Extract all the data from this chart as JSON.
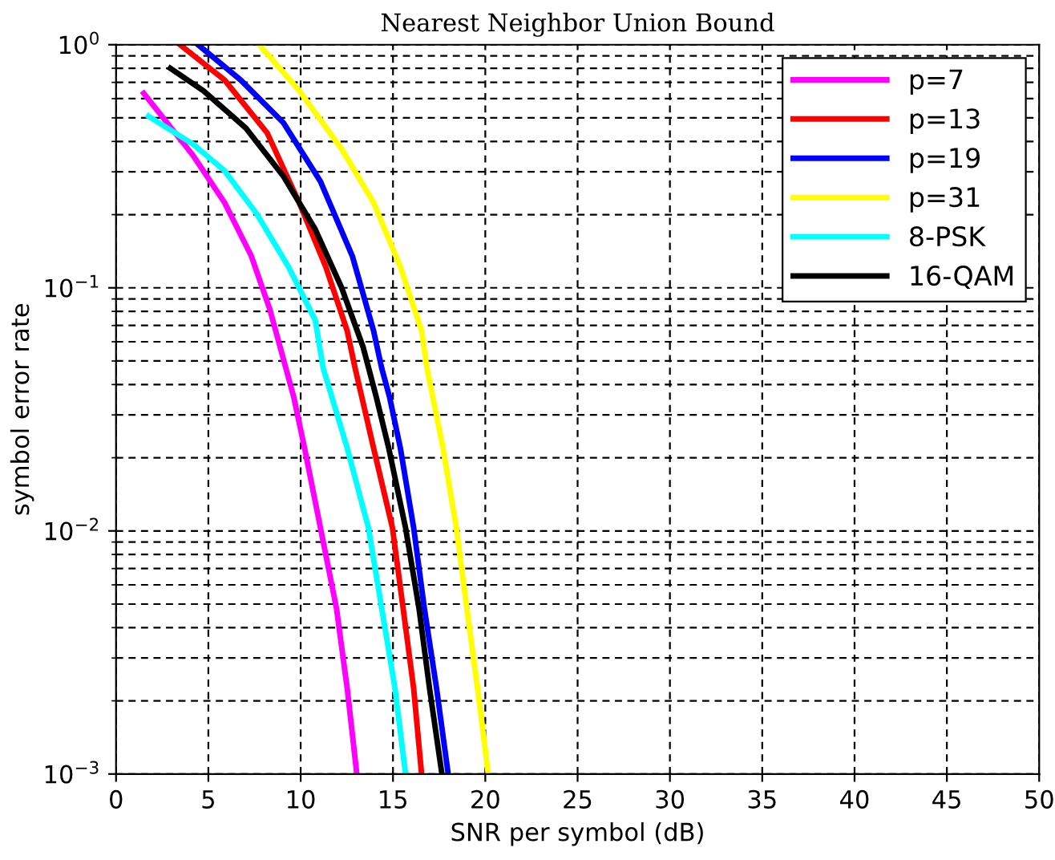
{
  "chart_data": {
    "type": "line",
    "title": "Nearest Neighbor Union Bound",
    "xlabel": "SNR per symbol (dB)",
    "ylabel": "symbol error rate",
    "log": "y",
    "grid": true,
    "legend": "top right",
    "line_style": "solid",
    "marker": "none",
    "xlim": [
      0,
      50
    ],
    "xticks": [
      0,
      5,
      10,
      15,
      20,
      25,
      30,
      35,
      40,
      45,
      50
    ],
    "ylim": [
      0.001,
      1
    ],
    "yticks": [
      {
        "value": 0.001,
        "label": "10$^{−3}$"
      },
      {
        "value": 0.01,
        "label": "10$^{−2}$"
      },
      {
        "value": 0.1,
        "label": "10$^{−1}$"
      },
      {
        "value": 1,
        "label": "10$^{0}$"
      }
    ],
    "series": [
      {
        "name": "p=7",
        "color": "#ff00ff",
        "x": [
          1.5,
          4.15,
          5.88,
          7.33,
          8.33,
          9.63,
          10.21,
          11.07,
          11.94,
          12.52,
          13.04
        ],
        "values": [
          0.631,
          0.352,
          0.224,
          0.135,
          0.0815,
          0.0354,
          0.0219,
          0.0103,
          0.0048,
          0.00225,
          0.001
        ]
      },
      {
        "name": "p=13",
        "color": "#ff0000",
        "x": [
          3.46,
          5.88,
          8.19,
          9.92,
          11.36,
          12.52,
          12.95,
          13.95,
          14.97,
          15.55,
          16.12,
          16.55
        ],
        "values": [
          1,
          0.716,
          0.433,
          0.224,
          0.122,
          0.0665,
          0.0467,
          0.0219,
          0.0103,
          0.0048,
          0.00225,
          0.001
        ]
      },
      {
        "name": "p=19",
        "color": "#0000ff",
        "x": [
          4.44,
          6.75,
          9.06,
          11.07,
          12.8,
          13.95,
          14.39,
          14.82,
          15.4,
          16.12,
          16.7,
          17.36,
          17.99
        ],
        "values": [
          1,
          0.716,
          0.478,
          0.274,
          0.135,
          0.0665,
          0.0467,
          0.0354,
          0.0219,
          0.0103,
          0.0048,
          0.00225,
          0.001
        ]
      },
      {
        "name": "p=31",
        "color": "#ffff00",
        "x": [
          7.76,
          9.92,
          12.22,
          13.95,
          15.4,
          16.55,
          16.84,
          17.71,
          18.43,
          19.0,
          19.58,
          20.16
        ],
        "values": [
          1,
          0.647,
          0.372,
          0.224,
          0.122,
          0.0665,
          0.0467,
          0.0219,
          0.0103,
          0.0048,
          0.00225,
          0.001
        ]
      },
      {
        "name": "8-PSK",
        "color": "#00ffff",
        "x": [
          1.76,
          4.15,
          5.88,
          7.61,
          9.34,
          10.79,
          11.22,
          12.52,
          13.67,
          14.39,
          15.11,
          15.68
        ],
        "values": [
          0.508,
          0.391,
          0.303,
          0.202,
          0.122,
          0.0736,
          0.0467,
          0.0219,
          0.0103,
          0.0048,
          0.00225,
          0.001
        ]
      },
      {
        "name": "16-QAM",
        "color": "#000000",
        "x": [
          2.94,
          4.73,
          7.03,
          9.06,
          10.79,
          12.22,
          13.38,
          14.1,
          14.77,
          15.68,
          16.41,
          16.98,
          17.65
        ],
        "values": [
          0.8,
          0.647,
          0.454,
          0.288,
          0.174,
          0.1,
          0.0571,
          0.0354,
          0.0219,
          0.0103,
          0.0048,
          0.00225,
          0.001
        ]
      }
    ]
  }
}
